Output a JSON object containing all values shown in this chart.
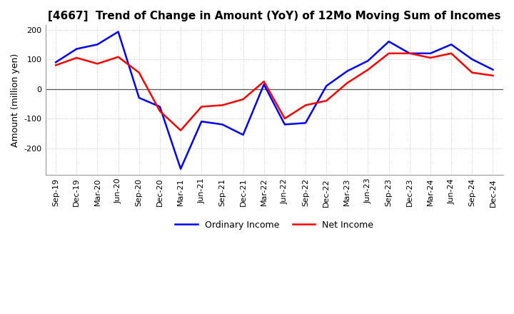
{
  "title": "[4667]  Trend of Change in Amount (YoY) of 12Mo Moving Sum of Incomes",
  "ylabel": "Amount (million yen)",
  "xlabels": [
    "Sep-19",
    "Dec-19",
    "Mar-20",
    "Jun-20",
    "Sep-20",
    "Dec-20",
    "Mar-21",
    "Jun-21",
    "Sep-21",
    "Dec-21",
    "Mar-22",
    "Jun-22",
    "Sep-22",
    "Dec-22",
    "Mar-23",
    "Jun-23",
    "Sep-23",
    "Dec-23",
    "Mar-24",
    "Jun-24",
    "Sep-24",
    "Dec-24"
  ],
  "ordinary_income": [
    90,
    135,
    150,
    193,
    -30,
    -60,
    -270,
    -110,
    -120,
    -155,
    15,
    -120,
    -115,
    10,
    60,
    95,
    160,
    120,
    120,
    150,
    100,
    65
  ],
  "net_income": [
    80,
    105,
    85,
    108,
    55,
    -75,
    -140,
    -60,
    -55,
    -35,
    25,
    -100,
    -55,
    -40,
    20,
    65,
    120,
    120,
    105,
    120,
    55,
    45
  ],
  "ordinary_color": "#0000ff",
  "net_color": "#ff0000",
  "ylim": [
    -290,
    215
  ],
  "yticks": [
    -200,
    -100,
    0,
    100,
    200
  ],
  "background_color": "#ffffff",
  "grid_color": "#bbbbbb",
  "zero_line_color": "#555555",
  "title_fontsize": 11,
  "tick_fontsize": 8,
  "ylabel_fontsize": 9,
  "legend_labels": [
    "Ordinary Income",
    "Net Income"
  ],
  "line_width": 1.8
}
